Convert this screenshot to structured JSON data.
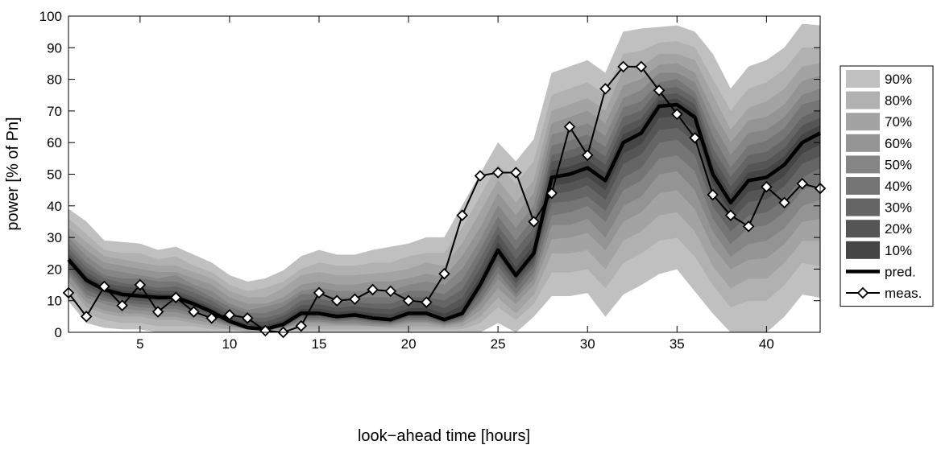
{
  "chart_data": {
    "type": "fan",
    "xlabel": "look−ahead time [hours]",
    "ylabel": "power [% of Pn]",
    "x": [
      1,
      2,
      3,
      4,
      5,
      6,
      7,
      8,
      9,
      10,
      11,
      12,
      13,
      14,
      15,
      16,
      17,
      18,
      19,
      20,
      21,
      22,
      23,
      24,
      25,
      26,
      27,
      28,
      29,
      30,
      31,
      32,
      33,
      34,
      35,
      36,
      37,
      38,
      39,
      40,
      41,
      42,
      43
    ],
    "xlim": [
      1,
      43
    ],
    "xticks": [
      5,
      10,
      15,
      20,
      25,
      30,
      35,
      40
    ],
    "ylim": [
      0,
      100
    ],
    "yticks": [
      0,
      10,
      20,
      30,
      40,
      50,
      60,
      70,
      80,
      90,
      100
    ],
    "bands": [
      {
        "name": "90%",
        "color": "#c0c0c0",
        "upper": [
          39,
          35,
          29,
          28.5,
          28,
          26,
          27,
          24.5,
          22,
          18,
          16,
          17,
          19.5,
          24,
          26,
          24.5,
          24.5,
          26,
          27,
          28,
          30,
          30,
          40,
          50,
          60,
          54,
          61,
          82,
          84,
          86,
          82,
          95,
          96,
          96.5,
          97,
          95,
          88,
          77,
          84,
          86,
          90,
          97.5,
          97
        ],
        "lower": [
          10,
          3,
          1.5,
          1,
          1,
          0,
          0,
          0,
          0,
          0,
          0,
          0,
          0,
          0,
          0,
          0,
          0,
          0,
          0,
          0,
          0,
          0,
          0,
          0,
          3,
          0,
          5,
          11.5,
          11.5,
          12.5,
          5,
          12,
          15,
          18.5,
          20,
          13,
          6,
          0,
          0,
          0,
          5,
          12,
          11
        ]
      },
      {
        "name": "80%",
        "color": "#b1b1b1",
        "upper": [
          36,
          31,
          26,
          25,
          25,
          23,
          24,
          21,
          19,
          15,
          13,
          14,
          16,
          20,
          22,
          21,
          21,
          22,
          22,
          24,
          25,
          25,
          33,
          43,
          53,
          47,
          54,
          75,
          77,
          79,
          75,
          88,
          89,
          91.5,
          92,
          90,
          80,
          70,
          77,
          79,
          83,
          90,
          90
        ],
        "lower": [
          13,
          6,
          4,
          3,
          3,
          2,
          2,
          2,
          1,
          1,
          0,
          0,
          0.5,
          1,
          1,
          1,
          1,
          1,
          1,
          1,
          1,
          1,
          1,
          3,
          8,
          4,
          9,
          19,
          19,
          20,
          14,
          22,
          25,
          29,
          30,
          24,
          15,
          8,
          10,
          10,
          15,
          22,
          21
        ]
      },
      {
        "name": "70%",
        "color": "#a3a3a3",
        "upper": [
          33,
          28.5,
          24,
          23,
          22,
          21,
          21,
          19,
          17,
          13,
          11,
          11,
          14,
          18,
          19,
          18,
          18,
          18.5,
          19,
          20,
          22,
          21,
          28,
          38,
          48,
          41,
          48,
          70,
          72,
          74,
          70,
          83,
          84,
          88,
          88,
          86,
          75,
          64,
          71,
          73,
          77,
          84,
          85
        ],
        "lower": [
          15,
          8,
          6,
          5,
          5,
          4,
          4,
          3,
          2,
          1,
          0.5,
          0.5,
          1,
          2,
          2,
          2,
          2,
          2,
          1.5,
          2,
          2,
          1.5,
          2,
          5,
          11,
          6,
          12,
          25,
          25,
          26,
          20,
          29,
          32,
          37,
          38,
          32,
          21,
          14,
          17,
          17,
          22,
          29,
          29
        ]
      },
      {
        "name": "60%",
        "color": "#949494",
        "upper": [
          31,
          26,
          22,
          21,
          20,
          19,
          19,
          17,
          15,
          11,
          9,
          9,
          11,
          15,
          16,
          15,
          15,
          16,
          16,
          17,
          18.5,
          17.5,
          24,
          33,
          44,
          37,
          44,
          66,
          68,
          70,
          66,
          78,
          80,
          84.5,
          85,
          82,
          70,
          60,
          67,
          68,
          72,
          79.5,
          81
        ],
        "lower": [
          16,
          9.5,
          7,
          6,
          6,
          5,
          5,
          4,
          3,
          2,
          1,
          0.5,
          1,
          3,
          3,
          2.5,
          2.5,
          2,
          2,
          3,
          3,
          2,
          3,
          7,
          14,
          9,
          15,
          29.5,
          30,
          31.5,
          26,
          35,
          38,
          44,
          45,
          39,
          27,
          20,
          23,
          23.5,
          28,
          35,
          36
        ]
      },
      {
        "name": "50%",
        "color": "#858585",
        "upper": [
          30,
          24,
          20,
          19,
          18,
          17,
          18,
          15,
          13,
          9,
          7,
          8,
          9.5,
          13,
          14,
          13,
          13,
          13,
          13,
          15,
          16,
          15,
          20,
          29,
          40,
          33,
          40,
          62.5,
          64,
          66,
          62,
          74,
          76.5,
          82,
          82,
          79,
          66,
          56,
          63,
          64,
          68,
          75,
          77
        ],
        "lower": [
          18,
          11,
          9,
          7.5,
          7,
          6.5,
          6.5,
          5,
          4,
          2,
          1,
          0.5,
          1.5,
          3.5,
          3.5,
          3,
          3,
          2.5,
          2.5,
          3.5,
          3.5,
          2.5,
          3.5,
          9,
          17,
          11,
          17,
          34,
          34,
          36,
          30,
          40,
          43,
          50,
          51,
          45,
          32,
          24,
          28,
          29,
          33,
          40,
          42
        ]
      },
      {
        "name": "40%",
        "color": "#757575",
        "upper": [
          28,
          22,
          18,
          17,
          17,
          16,
          16,
          14,
          11,
          8,
          6,
          6,
          8,
          12,
          12,
          11,
          11,
          11,
          11,
          13,
          13,
          12,
          16.5,
          26,
          36.5,
          29,
          36,
          59,
          60.5,
          62.5,
          58.5,
          71,
          73,
          79,
          80,
          76,
          62,
          52,
          59,
          60.5,
          64.5,
          72,
          73.5
        ],
        "lower": [
          19,
          12,
          10,
          9,
          8,
          7.5,
          7.5,
          6,
          4.5,
          2.5,
          1,
          0.7,
          1.7,
          4,
          4,
          3.5,
          3.8,
          3.1,
          2.8,
          4,
          4,
          2.8,
          4,
          10,
          19,
          12,
          19,
          37,
          38,
          40,
          35,
          45,
          48,
          55,
          56,
          51,
          36,
          28,
          33,
          34,
          38,
          45,
          47
        ]
      },
      {
        "name": "30%",
        "color": "#656565",
        "upper": [
          26.5,
          20.5,
          17,
          15.5,
          15,
          14,
          14.5,
          12.5,
          10,
          6.5,
          4.5,
          4.5,
          6,
          10,
          10.5,
          9.5,
          9.5,
          9,
          9,
          11,
          11,
          10,
          13.5,
          23,
          33.5,
          26,
          33,
          56,
          57.5,
          59.5,
          55.5,
          68,
          70,
          77,
          77.5,
          74,
          58,
          49,
          56,
          57,
          61,
          68,
          70.5
        ],
        "lower": [
          20,
          13.5,
          11,
          9.5,
          9,
          8.5,
          8.5,
          7,
          5,
          2.7,
          1.2,
          0.8,
          2,
          4.7,
          4.7,
          3.9,
          4.3,
          3.5,
          3.1,
          4.7,
          4.7,
          3.1,
          4.7,
          12,
          21,
          14,
          21,
          41,
          41.5,
          43,
          38.5,
          49,
          52,
          60,
          61,
          56,
          40,
          32,
          37,
          38,
          42,
          49,
          52
        ]
      },
      {
        "name": "20%",
        "color": "#555555",
        "upper": [
          25,
          19,
          15.5,
          14.5,
          14,
          13,
          13,
          11,
          8.5,
          5.5,
          3.5,
          3.2,
          5,
          8.5,
          8.8,
          7.7,
          8.2,
          7.5,
          7.2,
          9.1,
          9.4,
          7.6,
          10.8,
          20,
          31,
          23,
          30,
          54,
          55,
          57,
          53,
          65,
          67.5,
          75,
          75.5,
          72,
          55.3,
          46,
          53,
          54.2,
          58.2,
          65.3,
          67.8
        ],
        "lower": [
          21.2,
          14.6,
          11.8,
          10.5,
          10,
          9.5,
          9.5,
          7.7,
          5.6,
          3,
          1.3,
          0.9,
          2.2,
          5.2,
          5.2,
          4.3,
          4.7,
          3.9,
          3.4,
          5.2,
          5.2,
          3.4,
          5.2,
          12.9,
          22.8,
          15.5,
          22.2,
          43.7,
          44.6,
          46.5,
          42,
          53.3,
          56.3,
          64.1,
          64.7,
          60.3,
          43.8,
          35.3,
          41.3,
          42.1,
          46.3,
          53.3,
          55.7
        ]
      },
      {
        "name": "10%",
        "color": "#454545",
        "upper": [
          24.1,
          17.8,
          14.6,
          13.2,
          12.7,
          12.1,
          12.1,
          10.1,
          7.6,
          4.5,
          2.5,
          2.1,
          3.7,
          7.3,
          7.4,
          6.4,
          6.8,
          6,
          5.6,
          7.5,
          7.7,
          5.8,
          8.4,
          17.5,
          28.4,
          20.5,
          27.5,
          51.3,
          52.4,
          54.4,
          50.4,
          62.5,
          65.3,
          73.3,
          73.8,
          69.9,
          52.7,
          43.5,
          50.5,
          51.6,
          55.6,
          62.6,
          65.4
        ],
        "lower": [
          22.1,
          15.6,
          12.7,
          11.2,
          10.8,
          10.2,
          10.2,
          8.4,
          6,
          3.3,
          1.4,
          0.9,
          2.3,
          5.6,
          5.6,
          4.7,
          5.1,
          4.2,
          3.7,
          5.6,
          5.6,
          3.7,
          5.6,
          14,
          24.4,
          16.7,
          23.6,
          46.4,
          47.3,
          49.2,
          45,
          56.6,
          59.6,
          67.8,
          68.4,
          64.1,
          46.9,
          38.1,
          44.6,
          45.6,
          49.6,
          56.6,
          59.4
        ]
      }
    ],
    "series": [
      {
        "name": "pred.",
        "color": "#000000",
        "values": [
          23,
          16.5,
          13.5,
          12,
          11.5,
          11,
          11,
          9,
          6.5,
          3.5,
          1.5,
          1,
          2.5,
          6,
          6,
          5,
          5.5,
          4.5,
          4,
          6,
          6,
          4,
          6,
          15,
          26,
          18,
          25,
          49,
          50,
          52,
          48,
          60,
          63,
          71.5,
          72,
          68,
          50,
          41,
          48,
          49,
          53,
          60,
          63
        ]
      },
      {
        "name": "meas.",
        "color": "#000000",
        "marker": "diamond",
        "values": [
          12.5,
          5,
          14.5,
          8.5,
          15,
          6.5,
          11,
          6.5,
          4.5,
          5.5,
          4.5,
          0.5,
          0,
          2,
          12.5,
          10,
          10.5,
          13.5,
          13,
          10,
          9.5,
          18.5,
          37,
          49.5,
          50.5,
          50.5,
          35,
          44,
          65,
          56,
          77,
          84,
          84,
          76.5,
          69,
          61.5,
          43.5,
          37,
          33.5,
          46,
          41,
          47,
          45.5
        ]
      }
    ]
  }
}
